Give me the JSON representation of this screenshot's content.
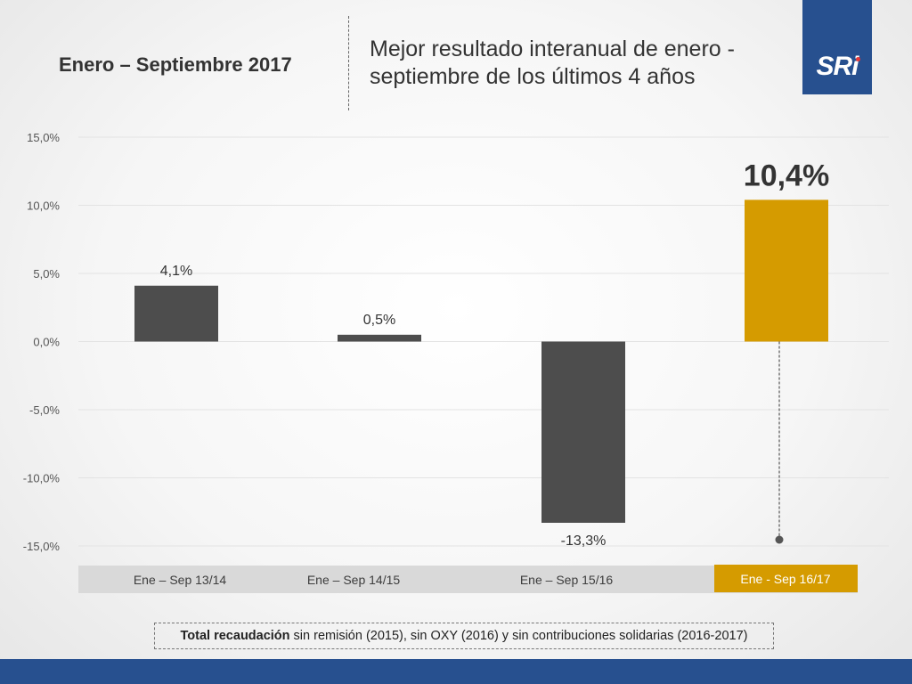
{
  "header": {
    "period_title": "Enero – Septiembre 2017",
    "main_title": "Mejor resultado interanual de enero - septiembre de los últimos 4 años",
    "logo_text": "SRi"
  },
  "footnote": {
    "bold": "Total recaudación",
    "rest": " sin remisión (2015), sin OXY (2016) y sin contribuciones solidarias (2016-2017)"
  },
  "colors": {
    "bar_default": "#4d4d4d",
    "bar_highlight": "#d59b00",
    "brand_blue": "#27508f"
  },
  "chart_data": {
    "type": "bar",
    "categories": [
      "Ene – Sep 13/14",
      "Ene – Sep 14/15",
      "Ene – Sep 15/16",
      "Ene - Sep 16/17"
    ],
    "values": [
      4.1,
      0.5,
      -13.3,
      10.4
    ],
    "value_labels": [
      "4,1%",
      "0,5%",
      "-13,3%",
      "10,4%"
    ],
    "highlight_index": 3,
    "ylim": [
      -15,
      15
    ],
    "yticks": [
      15,
      10,
      5,
      0,
      -5,
      -10,
      -15
    ],
    "ytick_labels": [
      "15,0%",
      "10,0%",
      "5,0%",
      "0,0%",
      "-5,0%",
      "-10,0%",
      "-15,0%"
    ],
    "grid": true,
    "legend": "none"
  }
}
